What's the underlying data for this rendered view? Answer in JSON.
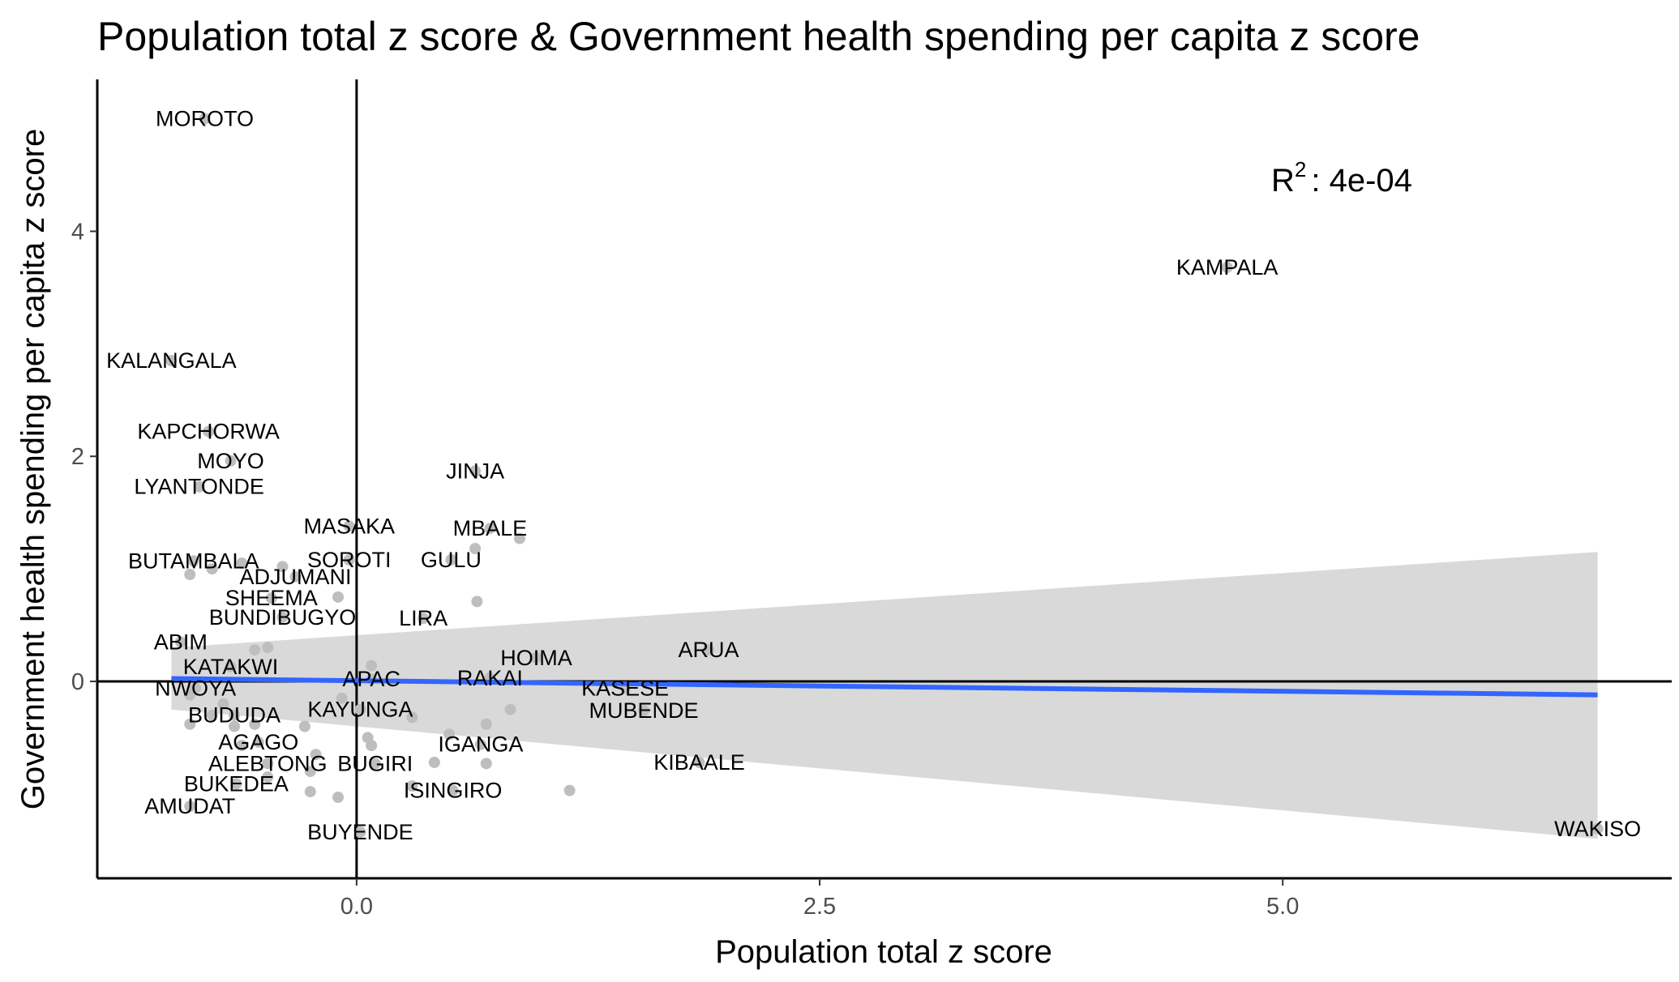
{
  "chart_data": {
    "type": "scatter",
    "title": "Population total z score & Government health spending per capita z score",
    "xlabel": "Population total z score",
    "ylabel": "Government health spending per capita z score",
    "xlim": [
      -1.4,
      7.1
    ],
    "ylim": [
      -1.75,
      5.35
    ],
    "x_ticks": [
      {
        "value": 0,
        "label": "0.0"
      },
      {
        "value": 2.5,
        "label": "2.5"
      },
      {
        "value": 5,
        "label": "5.0"
      }
    ],
    "y_ticks": [
      {
        "value": 0,
        "label": "0"
      },
      {
        "value": 2,
        "label": "2"
      },
      {
        "value": 4,
        "label": "4"
      }
    ],
    "reference_lines": {
      "x": 0,
      "y": 0
    },
    "annotation": {
      "base": "R",
      "superscript": "2",
      "text": ": 4e-04"
    },
    "regression": {
      "x_start": -1.0,
      "x_end": 6.7,
      "y_start": 0.025,
      "y_end": -0.12,
      "ci_lower_start": -0.25,
      "ci_upper_start": 0.3,
      "ci_lower_end": -1.4,
      "ci_upper_end": 1.15
    },
    "colors": {
      "points": "#bebebe",
      "line": "#3366ff",
      "ribbon": "#d9d9d9",
      "axis": "#000000"
    },
    "labeled_points": [
      {
        "name": "MOROTO",
        "x": -0.82,
        "y": 5.0
      },
      {
        "name": "KAMPALA",
        "x": 4.7,
        "y": 3.68
      },
      {
        "name": "KALANGALA",
        "x": -1.0,
        "y": 2.85
      },
      {
        "name": "KAPCHORWA",
        "x": -0.8,
        "y": 2.22
      },
      {
        "name": "MOYO",
        "x": -0.68,
        "y": 1.96
      },
      {
        "name": "LYANTONDE",
        "x": -0.85,
        "y": 1.73
      },
      {
        "name": "JINJA",
        "x": 0.64,
        "y": 1.87
      },
      {
        "name": "MASAKA",
        "x": -0.04,
        "y": 1.38
      },
      {
        "name": "MBALE",
        "x": 0.72,
        "y": 1.36
      },
      {
        "name": "BUTAMBALA",
        "x": -0.88,
        "y": 1.07
      },
      {
        "name": "SOROTI",
        "x": -0.04,
        "y": 1.08
      },
      {
        "name": "GULU",
        "x": 0.51,
        "y": 1.08
      },
      {
        "name": "ADJUMANI",
        "x": -0.33,
        "y": 0.93
      },
      {
        "name": "SHEEMA",
        "x": -0.46,
        "y": 0.74
      },
      {
        "name": "BUNDIBUGYO",
        "x": -0.4,
        "y": 0.57
      },
      {
        "name": "LIRA",
        "x": 0.36,
        "y": 0.56
      },
      {
        "name": "ABIM",
        "x": -0.95,
        "y": 0.35
      },
      {
        "name": "ARUA",
        "x": 1.9,
        "y": 0.28
      },
      {
        "name": "HOIMA",
        "x": 0.97,
        "y": 0.21
      },
      {
        "name": "KATAKWI",
        "x": -0.68,
        "y": 0.13
      },
      {
        "name": "APAC",
        "x": 0.08,
        "y": 0.02
      },
      {
        "name": "RAKAI",
        "x": 0.72,
        "y": 0.03
      },
      {
        "name": "NWOYA",
        "x": -0.87,
        "y": -0.06
      },
      {
        "name": "KASESE",
        "x": 1.45,
        "y": -0.06
      },
      {
        "name": "MUBENDE",
        "x": 1.55,
        "y": -0.26
      },
      {
        "name": "KAYUNGA",
        "x": 0.02,
        "y": -0.25
      },
      {
        "name": "BUDUDA",
        "x": -0.66,
        "y": -0.3
      },
      {
        "name": "AGAGO",
        "x": -0.53,
        "y": -0.54
      },
      {
        "name": "IGANGA",
        "x": 0.67,
        "y": -0.56
      },
      {
        "name": "ALEBTONG",
        "x": -0.48,
        "y": -0.73
      },
      {
        "name": "BUGIRI",
        "x": 0.1,
        "y": -0.73
      },
      {
        "name": "KIBAALE",
        "x": 1.85,
        "y": -0.72
      },
      {
        "name": "BUKEDEA",
        "x": -0.65,
        "y": -0.91
      },
      {
        "name": "ISINGIRO",
        "x": 0.52,
        "y": -0.97
      },
      {
        "name": "AMUDAT",
        "x": -0.9,
        "y": -1.11
      },
      {
        "name": "BUYENDE",
        "x": 0.02,
        "y": -1.34
      },
      {
        "name": "WAKISO",
        "x": 6.7,
        "y": -1.31
      }
    ],
    "unlabeled_points": [
      {
        "x": -0.9,
        "y": 0.95
      },
      {
        "x": -0.78,
        "y": 1.0
      },
      {
        "x": -0.62,
        "y": 1.05
      },
      {
        "x": -0.4,
        "y": 1.02
      },
      {
        "x": -0.1,
        "y": 0.75
      },
      {
        "x": 0.64,
        "y": 1.18
      },
      {
        "x": 0.88,
        "y": 1.27
      },
      {
        "x": 0.65,
        "y": 0.71
      },
      {
        "x": -0.55,
        "y": 0.28
      },
      {
        "x": -0.48,
        "y": 0.3
      },
      {
        "x": 0.08,
        "y": 0.14
      },
      {
        "x": -0.9,
        "y": -0.12
      },
      {
        "x": -0.72,
        "y": -0.2
      },
      {
        "x": -0.78,
        "y": -0.3
      },
      {
        "x": -0.9,
        "y": -0.38
      },
      {
        "x": -0.66,
        "y": -0.4
      },
      {
        "x": -0.55,
        "y": -0.38
      },
      {
        "x": -0.28,
        "y": -0.4
      },
      {
        "x": -0.08,
        "y": -0.15
      },
      {
        "x": 0.3,
        "y": -0.32
      },
      {
        "x": 0.5,
        "y": -0.47
      },
      {
        "x": 0.7,
        "y": -0.38
      },
      {
        "x": 0.83,
        "y": -0.25
      },
      {
        "x": -0.62,
        "y": -0.57
      },
      {
        "x": 0.06,
        "y": -0.5
      },
      {
        "x": 0.08,
        "y": -0.57
      },
      {
        "x": -0.22,
        "y": -0.65
      },
      {
        "x": -0.25,
        "y": -0.8
      },
      {
        "x": 0.42,
        "y": -0.72
      },
      {
        "x": 0.7,
        "y": -0.73
      },
      {
        "x": -0.48,
        "y": -0.85
      },
      {
        "x": -0.25,
        "y": -0.98
      },
      {
        "x": -0.1,
        "y": -1.03
      },
      {
        "x": 0.3,
        "y": -0.93
      },
      {
        "x": 1.15,
        "y": -0.97
      }
    ]
  }
}
